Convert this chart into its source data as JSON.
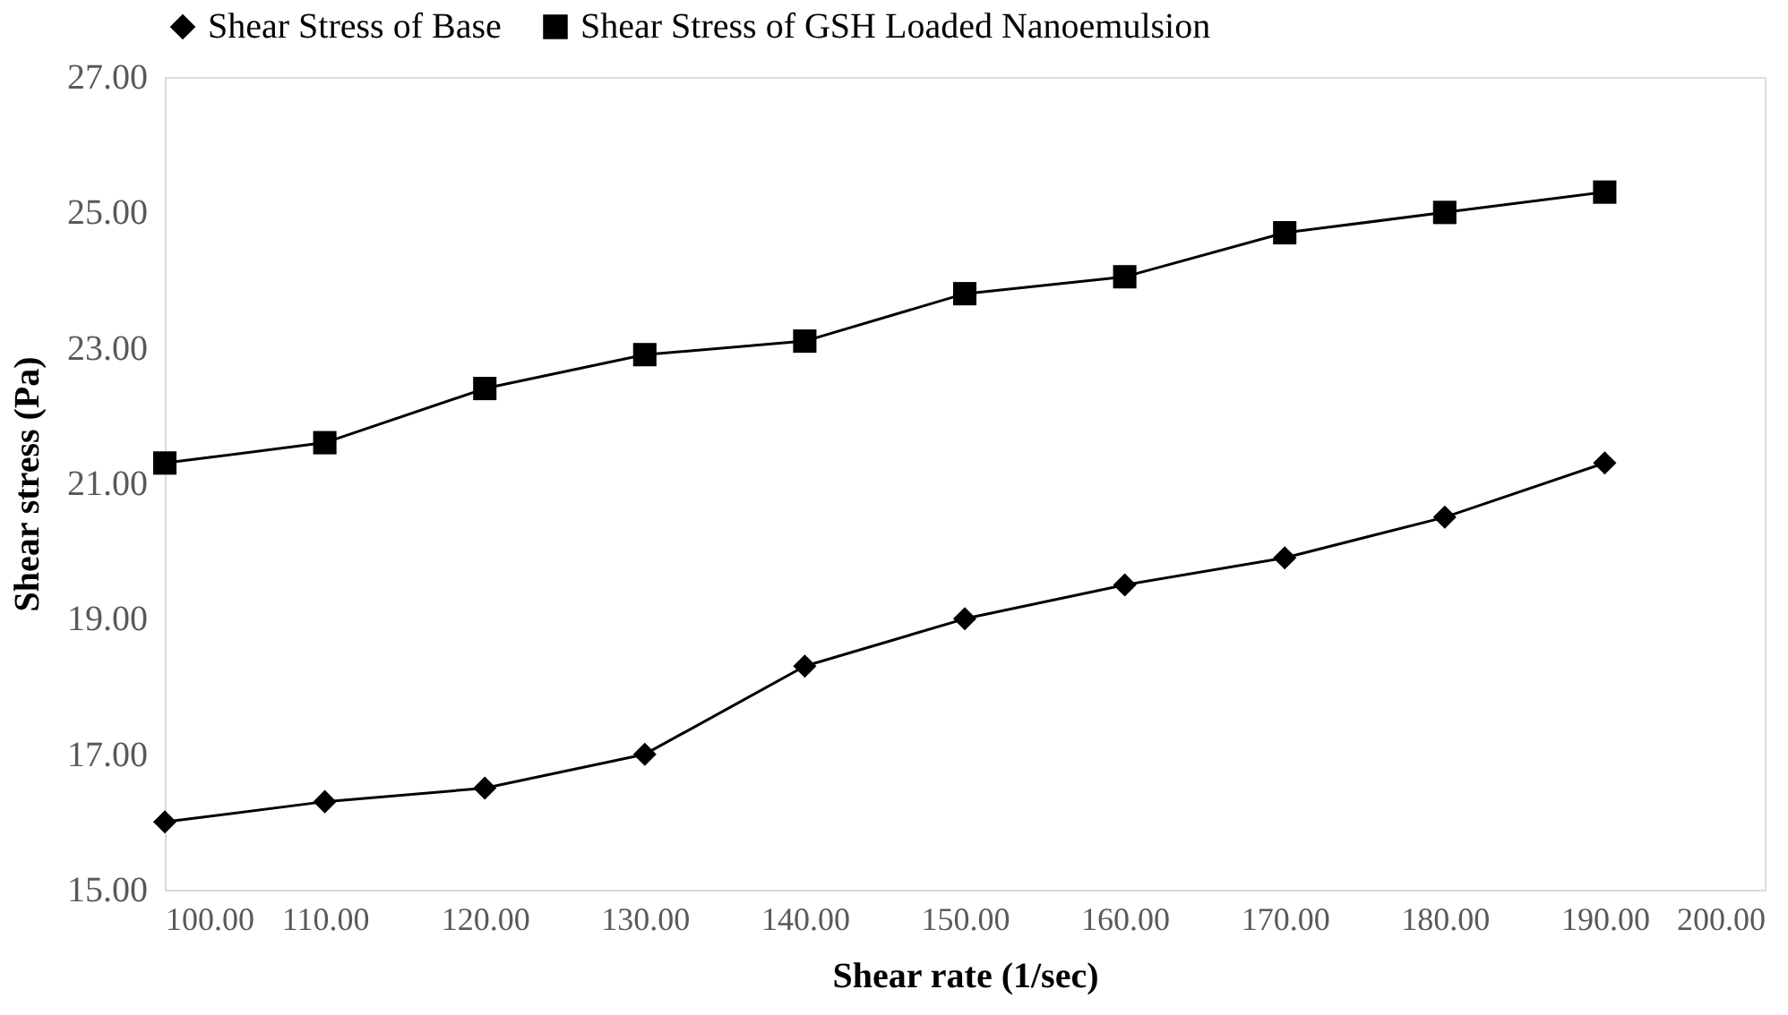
{
  "chart_data": {
    "type": "line",
    "xlabel": "Shear rate (1/sec)",
    "ylabel": "Shear stress (Pa)",
    "x": [
      100,
      110,
      120,
      130,
      140,
      150,
      160,
      170,
      180,
      190
    ],
    "series": [
      {
        "name": "Shear Stress of Base",
        "color": "#000000",
        "marker": "diamond",
        "values": [
          16.0,
          16.3,
          16.5,
          17.0,
          18.3,
          19.0,
          19.5,
          19.9,
          20.5,
          21.3
        ]
      },
      {
        "name": "Shear Stress of GSH Loaded Nanoemulsion",
        "color": "#000000",
        "marker": "square",
        "values": [
          21.3,
          21.6,
          22.4,
          22.9,
          23.1,
          23.8,
          24.05,
          24.7,
          25.0,
          25.3
        ]
      }
    ],
    "xlim": [
      100,
      200
    ],
    "xticks": [
      {
        "value": 100,
        "label": "100.00"
      },
      {
        "value": 110,
        "label": "110.00"
      },
      {
        "value": 120,
        "label": "120.00"
      },
      {
        "value": 130,
        "label": "130.00"
      },
      {
        "value": 140,
        "label": "140.00"
      },
      {
        "value": 150,
        "label": "150.00"
      },
      {
        "value": 160,
        "label": "160.00"
      },
      {
        "value": 170,
        "label": "170.00"
      },
      {
        "value": 180,
        "label": "180.00"
      },
      {
        "value": 190,
        "label": "190.00"
      },
      {
        "value": 200,
        "label": "200.00"
      }
    ],
    "ylim": [
      15,
      27
    ],
    "yticks": [
      {
        "value": 15,
        "label": "15.00"
      },
      {
        "value": 17,
        "label": "17.00"
      },
      {
        "value": 19,
        "label": "19.00"
      },
      {
        "value": 21,
        "label": "21.00"
      },
      {
        "value": 23,
        "label": "23.00"
      },
      {
        "value": 25,
        "label": "25.00"
      },
      {
        "value": 27,
        "label": "27.00"
      }
    ],
    "grid": false,
    "legend": "top",
    "line_style": "solid"
  }
}
